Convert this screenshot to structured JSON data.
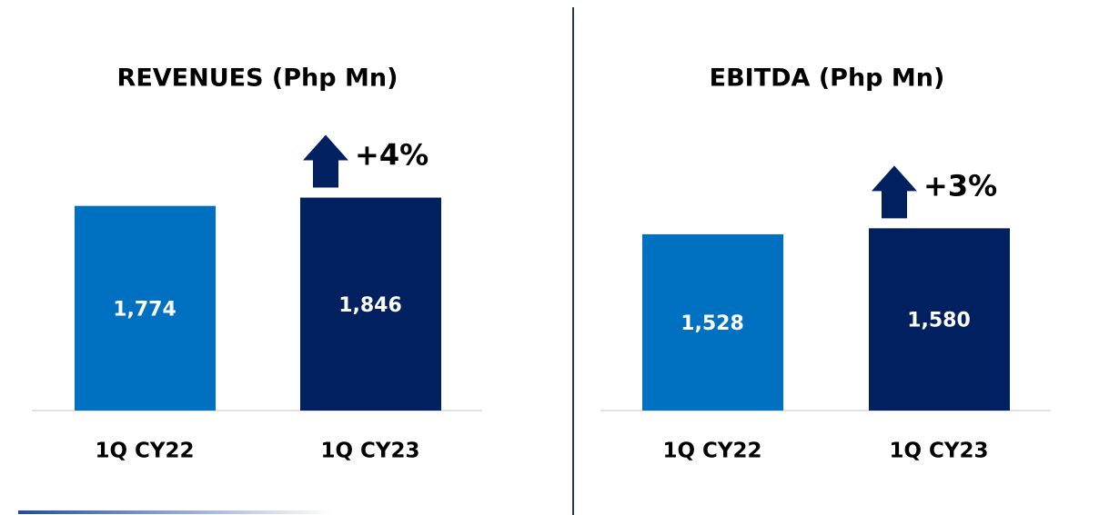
{
  "chart_data": [
    {
      "type": "bar",
      "title": "REVENUES (Php Mn)",
      "categories": [
        "1Q CY22",
        "1Q CY23"
      ],
      "values": [
        1774,
        1846
      ],
      "value_labels": [
        "1,774",
        "1,846"
      ],
      "colors": [
        "#0070c0",
        "#002060"
      ],
      "annotation": "+4%",
      "ylim": [
        0,
        2000
      ]
    },
    {
      "type": "bar",
      "title": "EBITDA (Php Mn)",
      "categories": [
        "1Q CY22",
        "1Q CY23"
      ],
      "values": [
        1528,
        1580
      ],
      "value_labels": [
        "1,528",
        "1,580"
      ],
      "colors": [
        "#0070c0",
        "#002060"
      ],
      "annotation": "+3%",
      "ylim": [
        0,
        2000
      ]
    }
  ]
}
